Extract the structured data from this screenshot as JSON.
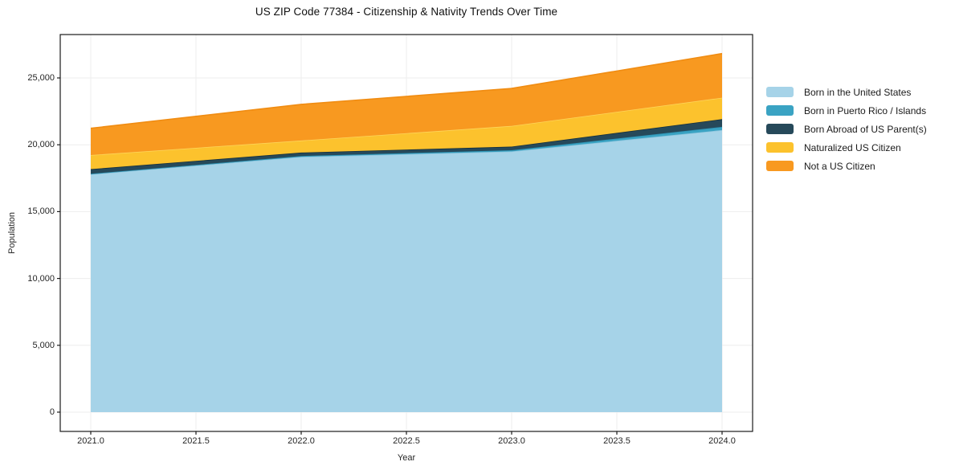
{
  "chart_data": {
    "type": "area",
    "stacked": true,
    "title": "US ZIP Code 77384 - Citizenship & Nativity Trends Over Time",
    "xlabel": "Year",
    "ylabel": "Population",
    "x": [
      2021,
      2022,
      2023,
      2024
    ],
    "series": [
      {
        "name": "Born in the United States",
        "color": "#a6d3e8",
        "edge_color": "#8fc6de",
        "values": [
          17800,
          19100,
          19500,
          21100
        ]
      },
      {
        "name": "Born in Puerto Rico / Islands",
        "color": "#3aa3c3",
        "edge_color": "#2d92b3",
        "values": [
          30,
          60,
          90,
          240
        ]
      },
      {
        "name": "Born Abroad of US Parent(s)",
        "color": "#26495a",
        "edge_color": "#16303d",
        "values": [
          350,
          260,
          270,
          580
        ]
      },
      {
        "name": "Naturalized US Citizen",
        "color": "#fcc22d",
        "edge_color": "#fdd55a",
        "values": [
          1050,
          900,
          1550,
          1600
        ]
      },
      {
        "name": "Not a US Citizen",
        "color": "#f89920",
        "edge_color": "#f08c12",
        "values": [
          2000,
          2700,
          2800,
          3300
        ]
      }
    ],
    "totals": [
      21230,
      23020,
      24210,
      26820
    ],
    "xtick_labels": [
      "2021.0",
      "2021.5",
      "2022.0",
      "2022.5",
      "2023.0",
      "2023.5",
      "2024.0"
    ],
    "ytick_labels": [
      "0",
      "5,000",
      "10,000",
      "15,000",
      "20,000",
      "25,000"
    ],
    "ytick_values": [
      0,
      5000,
      10000,
      15000,
      20000,
      25000
    ],
    "xlim": [
      2020.85,
      2024.15
    ],
    "ylim": [
      -1450,
      28250
    ],
    "grid": true,
    "grid_color": "#ededed",
    "spine_color": "#1a1a1a",
    "legend_position": "right-outside"
  }
}
